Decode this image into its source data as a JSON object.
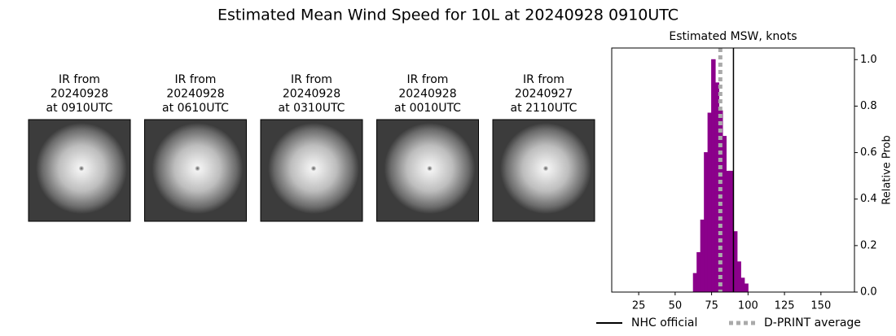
{
  "title": "Estimated Mean Wind Speed for 10L at 20240928 0910UTC",
  "panels": [
    {
      "lines": [
        "IR from",
        "20240928",
        "at 0910UTC"
      ]
    },
    {
      "lines": [
        "IR from",
        "20240928",
        "at 0610UTC"
      ]
    },
    {
      "lines": [
        "IR from",
        "20240928",
        "at 0310UTC"
      ]
    },
    {
      "lines": [
        "IR from",
        "20240928",
        "at 0010UTC"
      ]
    },
    {
      "lines": [
        "IR from",
        "20240927",
        "at 2110UTC"
      ]
    }
  ],
  "chart_data": {
    "type": "histogram",
    "title": "Estimated MSW, knots",
    "y_label": "Relative Prob",
    "color": "#8b008b",
    "bins": [
      15,
      17.5,
      20,
      22.5,
      25,
      27.5,
      30,
      32.5,
      35,
      37.5,
      40,
      42.5,
      45,
      47.5,
      50,
      52.5,
      55,
      57.5,
      60,
      62.5,
      65,
      67.5,
      70,
      72.5,
      75,
      77.5,
      80,
      82.5,
      85,
      87.5,
      90,
      92.5,
      95,
      97.5,
      100,
      102.5,
      105,
      107.5,
      110,
      112.5,
      115,
      117.5,
      120,
      122.5,
      125,
      127.5,
      130,
      132.5,
      135,
      137.5,
      140,
      142.5,
      145,
      147.5,
      150,
      152.5,
      155,
      157.5,
      160,
      162.5,
      165,
      167.5,
      170
    ],
    "values": [
      0,
      0,
      0,
      0,
      0,
      0,
      0,
      0,
      0,
      0,
      0,
      0,
      0,
      0,
      0,
      0,
      0,
      0,
      0,
      0.08,
      0.17,
      0.31,
      0.6,
      0.77,
      1.0,
      0.9,
      0.78,
      0.67,
      0.52,
      0.52,
      0.26,
      0.13,
      0.06,
      0.035,
      0,
      0,
      0,
      0,
      0,
      0,
      0,
      0,
      0,
      0,
      0,
      0,
      0,
      0,
      0,
      0,
      0,
      0,
      0,
      0,
      0,
      0,
      0,
      0,
      0,
      0,
      0,
      0
    ],
    "xlim": [
      6.5,
      173
    ],
    "xticks": [
      25,
      50,
      75,
      100,
      125,
      150
    ],
    "ylim": [
      0,
      1.05
    ],
    "yticks": [
      {
        "value": 0,
        "label": "0.0"
      },
      {
        "value": 0.2,
        "label": "0.2"
      },
      {
        "value": 0.4,
        "label": "0.4"
      },
      {
        "value": 0.6,
        "label": "0.6"
      },
      {
        "value": 0.8,
        "label": "0.8"
      },
      {
        "value": 1.0,
        "label": "1.0"
      }
    ],
    "lines": [
      {
        "name": "NHC official",
        "x": 90,
        "color": "#000000",
        "dashed": false
      },
      {
        "name": "D-PRINT average",
        "x": 81,
        "color": "#aaaaaa",
        "dashed": true
      }
    ]
  }
}
